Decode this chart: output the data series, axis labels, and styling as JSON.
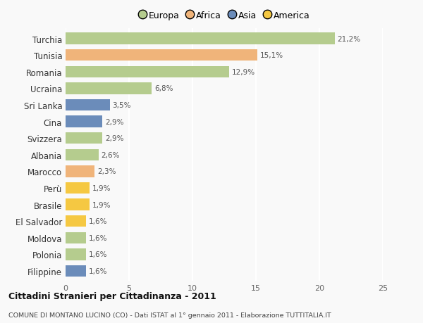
{
  "categories": [
    "Turchia",
    "Tunisia",
    "Romania",
    "Ucraina",
    "Sri Lanka",
    "Cina",
    "Svizzera",
    "Albania",
    "Marocco",
    "Perù",
    "Brasile",
    "El Salvador",
    "Moldova",
    "Polonia",
    "Filippine"
  ],
  "values": [
    21.2,
    15.1,
    12.9,
    6.8,
    3.5,
    2.9,
    2.9,
    2.6,
    2.3,
    1.9,
    1.9,
    1.6,
    1.6,
    1.6,
    1.6
  ],
  "labels": [
    "21,2%",
    "15,1%",
    "12,9%",
    "6,8%",
    "3,5%",
    "2,9%",
    "2,9%",
    "2,6%",
    "2,3%",
    "1,9%",
    "1,9%",
    "1,6%",
    "1,6%",
    "1,6%",
    "1,6%"
  ],
  "colors": [
    "#b5cc8e",
    "#f0b47a",
    "#b5cc8e",
    "#b5cc8e",
    "#6b8cba",
    "#6b8cba",
    "#b5cc8e",
    "#b5cc8e",
    "#f0b47a",
    "#f5c842",
    "#f5c842",
    "#f5c842",
    "#b5cc8e",
    "#b5cc8e",
    "#6b8cba"
  ],
  "legend_labels": [
    "Europa",
    "Africa",
    "Asia",
    "America"
  ],
  "legend_colors": [
    "#b5cc8e",
    "#f0b47a",
    "#6b8cba",
    "#f5c842"
  ],
  "xlim": [
    0,
    25
  ],
  "xticks": [
    0,
    5,
    10,
    15,
    20,
    25
  ],
  "title": "Cittadini Stranieri per Cittadinanza - 2011",
  "subtitle": "COMUNE DI MONTANO LUCINO (CO) - Dati ISTAT al 1° gennaio 2011 - Elaborazione TUTTITALIA.IT",
  "bg_color": "#f9f9f9",
  "grid_color": "#ffffff",
  "bar_height": 0.7
}
